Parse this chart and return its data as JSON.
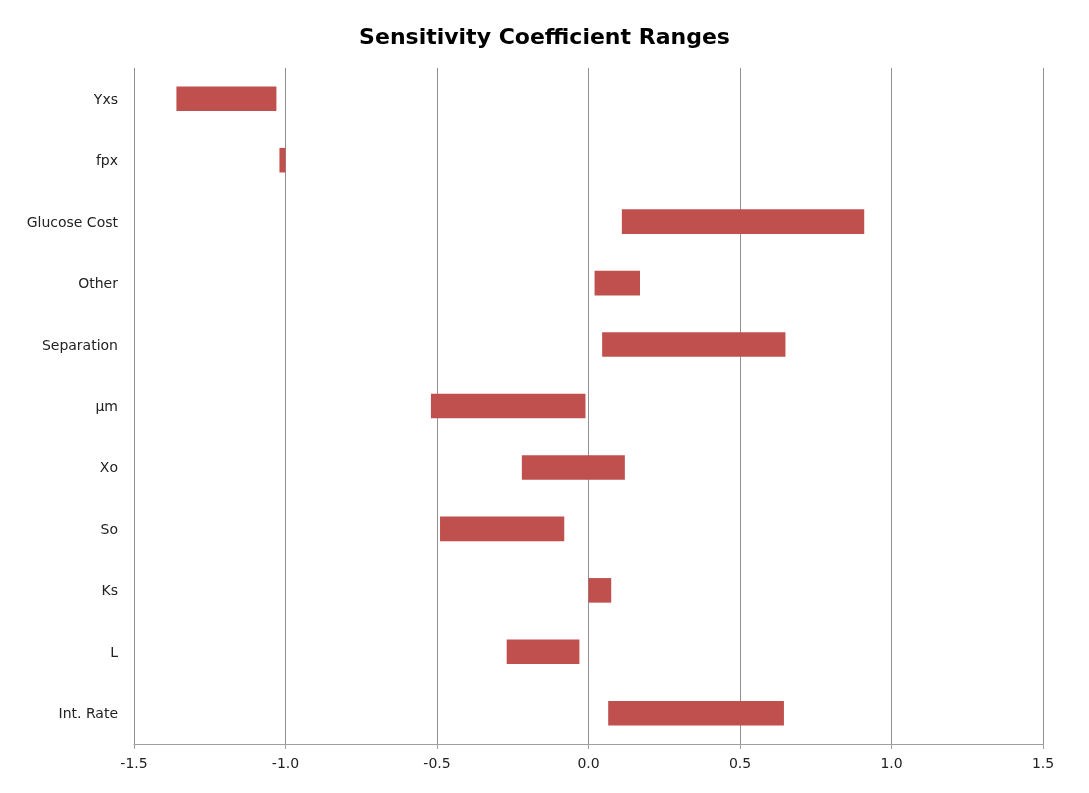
{
  "chart_data": {
    "type": "bar",
    "orientation": "horizontal",
    "title": "Sensitivity Coefficient Ranges",
    "categories": [
      "Yxs",
      "fpx",
      "Glucose Cost",
      "Other",
      "Separation",
      "μm",
      "Xo",
      "So",
      "Ks",
      "L",
      "Int. Rate"
    ],
    "base": [
      -1.36,
      -1.02,
      0.11,
      0.02,
      0.045,
      -0.52,
      -0.22,
      -0.49,
      0,
      -0.27,
      0.065
    ],
    "values": [
      0.33,
      0.02,
      0.8,
      0.15,
      0.605,
      0.51,
      0.34,
      0.41,
      0.075,
      0.24,
      0.58
    ],
    "color": "#c0504d",
    "xlim": [
      -1.5,
      1.5
    ],
    "xticks": [
      {
        "value": -1.5,
        "label": "-1.5"
      },
      {
        "value": -1,
        "label": "-1.0"
      },
      {
        "value": -0.5,
        "label": "-0.5"
      },
      {
        "value": 0,
        "label": "0.0"
      },
      {
        "value": 0.5,
        "label": "0.5"
      },
      {
        "value": 1,
        "label": "1.0"
      },
      {
        "value": 1.5,
        "label": "1.5"
      }
    ],
    "grid": "x"
  }
}
